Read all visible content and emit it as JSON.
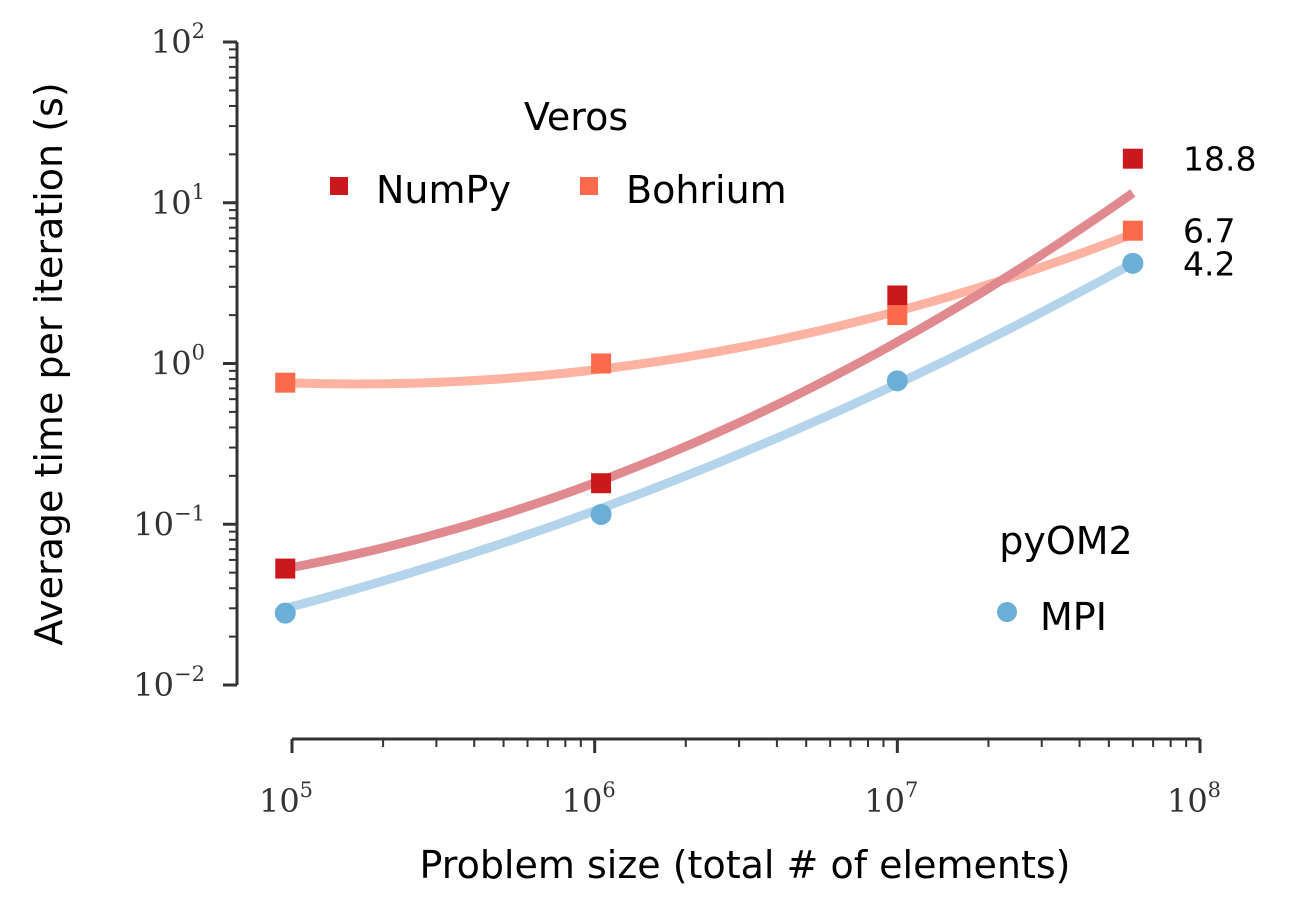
{
  "chart_data": {
    "type": "scatter",
    "xlabel": "Problem size (total # of elements)",
    "ylabel": "Average time per iteration (s)",
    "xscale": "log",
    "yscale": "log",
    "xlim": [
      100000,
      100000000
    ],
    "ylim": [
      0.01,
      100
    ],
    "x_ticks": [
      {
        "base": "10",
        "exp": "5",
        "value": 100000
      },
      {
        "base": "10",
        "exp": "6",
        "value": 1000000
      },
      {
        "base": "10",
        "exp": "7",
        "value": 10000000
      },
      {
        "base": "10",
        "exp": "8",
        "value": 100000000
      }
    ],
    "y_ticks": [
      {
        "base": "10",
        "exp": "−2",
        "value": 0.01
      },
      {
        "base": "10",
        "exp": "−1",
        "value": 0.1
      },
      {
        "base": "10",
        "exp": "0",
        "value": 1
      },
      {
        "base": "10",
        "exp": "1",
        "value": 10
      },
      {
        "base": "10",
        "exp": "2",
        "value": 100
      }
    ],
    "grid": false,
    "legends": [
      {
        "title": "Veros",
        "placement": "top-left",
        "entries": [
          "NumPy",
          "Bohrium"
        ]
      },
      {
        "title": "pyOM2",
        "placement": "bottom-right",
        "entries": [
          "MPI"
        ]
      }
    ],
    "series": [
      {
        "name": "NumPy",
        "group": "Veros",
        "marker": "square",
        "color": "#cb181d",
        "fit_color": "#e08a90",
        "x": [
          95000,
          1050000,
          10000000,
          60000000
        ],
        "y": [
          0.053,
          0.18,
          2.65,
          18.8
        ],
        "fit_x": [
          95000,
          60000000
        ],
        "fit_y": [
          0.053,
          11.5
        ],
        "end_label": "18.8"
      },
      {
        "name": "Bohrium",
        "group": "Veros",
        "marker": "square",
        "color": "#fb6a4a",
        "fit_color": "#fdb2a2",
        "x": [
          95000,
          1050000,
          10000000,
          60000000
        ],
        "y": [
          0.76,
          1.0,
          2.0,
          6.7
        ],
        "fit_x": [
          95000,
          60000000
        ],
        "fit_y": [
          0.76,
          6.4
        ],
        "end_label": "6.7"
      },
      {
        "name": "MPI",
        "group": "pyOM2",
        "marker": "circle",
        "color": "#6baed6",
        "fit_color": "#b3d4ea",
        "x": [
          95000,
          1050000,
          10000000,
          60000000
        ],
        "y": [
          0.028,
          0.115,
          0.78,
          4.2
        ],
        "fit_x": [
          95000,
          60000000
        ],
        "fit_y": [
          0.03,
          4.2
        ],
        "end_label": "4.2"
      }
    ]
  }
}
